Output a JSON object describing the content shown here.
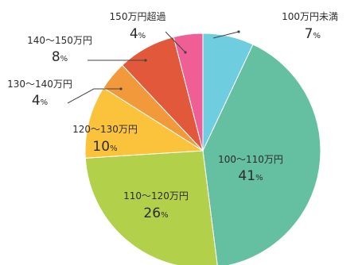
{
  "chart_data": {
    "type": "pie",
    "unit": "%",
    "slices": [
      {
        "label": "100万円未満",
        "value": 7,
        "color": "#6fcde0"
      },
      {
        "label": "100〜110万円",
        "value": 41,
        "color": "#64c0a0"
      },
      {
        "label": "110〜120万円",
        "value": 26,
        "color": "#b3d04a"
      },
      {
        "label": "120〜130万円",
        "value": 10,
        "color": "#fbc33b"
      },
      {
        "label": "130〜140万円",
        "value": 4,
        "color": "#f29a3b"
      },
      {
        "label": "140〜150万円",
        "value": 8,
        "color": "#e1593a"
      },
      {
        "label": "150万円超過",
        "value": 4,
        "color": "#ef5f96"
      }
    ]
  }
}
